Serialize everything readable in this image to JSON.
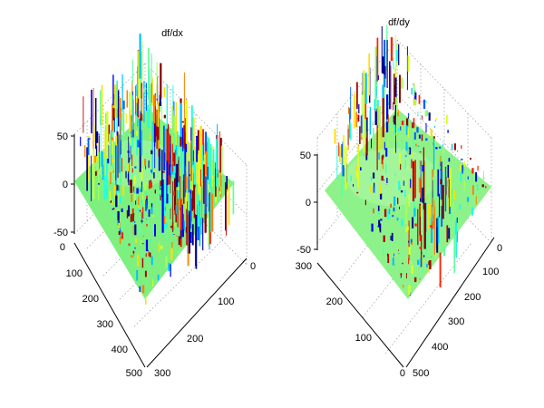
{
  "chart_data": [
    {
      "type": "surface",
      "title": "df/dx",
      "zlim": [
        -50,
        50
      ],
      "z_ticks": [
        "50",
        "0",
        "-50"
      ],
      "y_ticks": [
        "0",
        "100",
        "200",
        "300",
        "400",
        "500"
      ],
      "x_ticks": [
        "0",
        "100",
        "200",
        "300"
      ],
      "grid": true,
      "colormap": "jet"
    },
    {
      "type": "surface",
      "title": "df/dy",
      "zlim": [
        -50,
        50
      ],
      "z_ticks": [
        "50",
        "0",
        "-50"
      ],
      "x_ticks": [
        "300",
        "200",
        "100",
        "0"
      ],
      "y_ticks": [
        "0",
        "100",
        "200",
        "300",
        "400",
        "500"
      ],
      "grid": true,
      "colormap": "jet"
    }
  ]
}
